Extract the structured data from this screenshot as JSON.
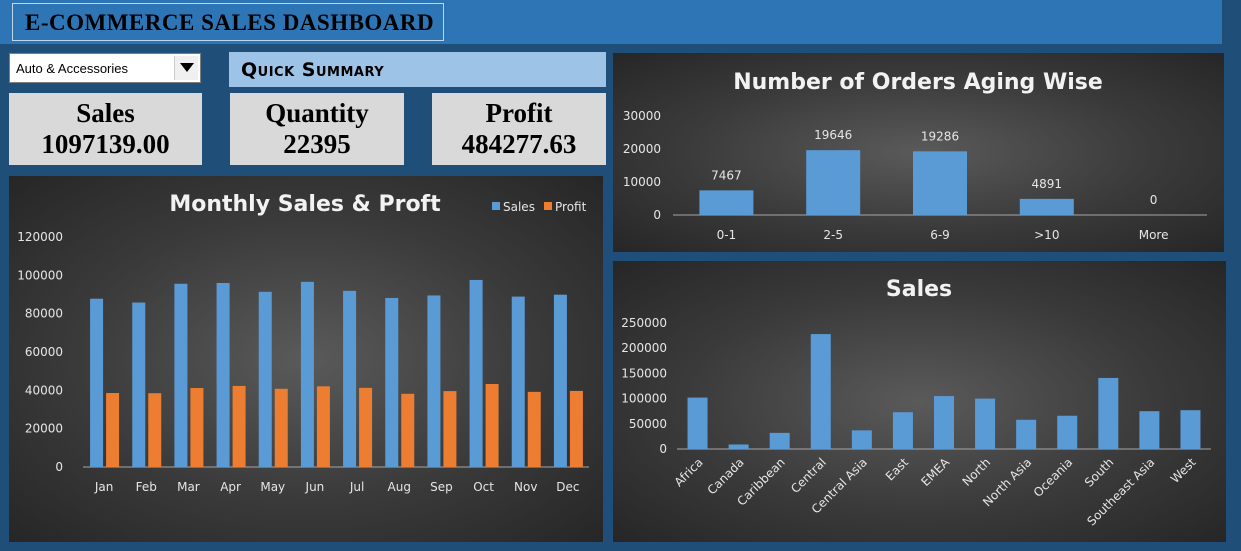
{
  "header": {
    "title": "E-COMMERCE SALES DASHBOARD"
  },
  "filter": {
    "selected": "Auto & Accessories"
  },
  "quick_summary": {
    "label": "Quick Summary"
  },
  "kpis": {
    "sales": {
      "label": "Sales",
      "value": "1097139.00"
    },
    "quantity": {
      "label": "Quantity",
      "value": "22395"
    },
    "profit": {
      "label": "Profit",
      "value": "484277.63"
    }
  },
  "colors": {
    "sales": "#5b9bd5",
    "profit": "#ed7d31",
    "header": "#2e75b6",
    "background": "#1f4e79"
  },
  "chart_data": [
    {
      "id": "monthly",
      "type": "bar",
      "title": "Monthly Sales & Proft",
      "categories": [
        "Jan",
        "Feb",
        "Mar",
        "Apr",
        "May",
        "Jun",
        "Jul",
        "Aug",
        "Sep",
        "Oct",
        "Nov",
        "Dec"
      ],
      "series": [
        {
          "name": "Sales",
          "values": [
            87800,
            85800,
            95600,
            96000,
            91400,
            96600,
            91900,
            88200,
            89500,
            97600,
            88900,
            89900
          ]
        },
        {
          "name": "Profit",
          "values": [
            38600,
            38500,
            41200,
            42300,
            40800,
            42100,
            41300,
            38200,
            39600,
            43300,
            39200,
            39700
          ]
        }
      ],
      "ylim": [
        0,
        120000
      ],
      "yticks": [
        "0",
        "20000",
        "40000",
        "60000",
        "80000",
        "100000",
        "120000"
      ],
      "legend": "top-right",
      "grid": false
    },
    {
      "id": "aging",
      "type": "bar",
      "title": "Number of Orders Aging Wise",
      "categories": [
        "0-1",
        "2-5",
        "6-9",
        ">10",
        "More"
      ],
      "values": [
        7467,
        19646,
        19286,
        4891,
        0
      ],
      "data_labels": [
        "7467",
        "19646",
        "19286",
        "4891",
        "0"
      ],
      "ylim": [
        0,
        30000
      ],
      "yticks": [
        "0",
        "10000",
        "20000",
        "30000"
      ],
      "grid": false
    },
    {
      "id": "region",
      "type": "bar",
      "title": "Sales",
      "categories": [
        "Africa",
        "Canada",
        "Caribbean",
        "Central",
        "Central Asia",
        "East",
        "EMEA",
        "North",
        "North Asia",
        "Oceania",
        "South",
        "Southeast Asia",
        "West"
      ],
      "values": [
        102000,
        9000,
        32000,
        228000,
        37000,
        73000,
        105000,
        100000,
        58000,
        66000,
        141000,
        75000,
        77000
      ],
      "ylim": [
        0,
        250000
      ],
      "yticks": [
        "0",
        "50000",
        "100000",
        "150000",
        "200000",
        "250000"
      ],
      "grid": false
    }
  ]
}
